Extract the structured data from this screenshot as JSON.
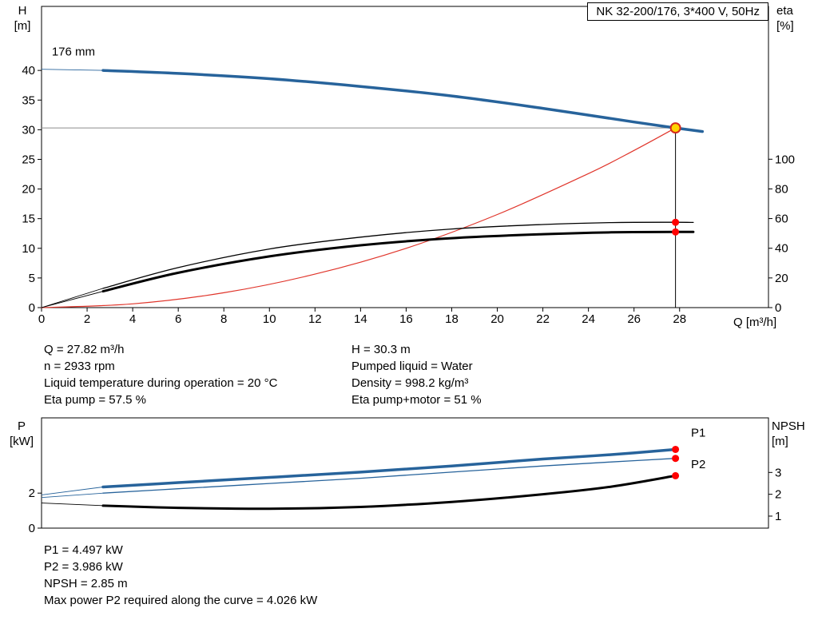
{
  "colors": {
    "curve_blue": "#27639b",
    "curve_red": "#e0352b",
    "marker_red": "#ff0000",
    "duty_yellow": "#ffd400",
    "guide_gray": "#8c8c8c",
    "axis_black": "#000000"
  },
  "results": {
    "left": [
      "Q = 27.82 m³/h",
      "n = 2933 rpm",
      "Liquid temperature during operation = 20 °C",
      "Eta pump = 57.5 %"
    ],
    "right": [
      "H = 30.3 m",
      "Pumped liquid = Water",
      "Density = 998.2 kg/m³",
      "Eta pump+motor = 51 %"
    ]
  },
  "bottom_results": [
    "P1 = 4.497 kW",
    "P2 = 3.986 kW",
    "NPSH = 2.85 m",
    "Max power P2 required along the curve = 4.026 kW"
  ],
  "chart_data": [
    {
      "id": "qh_eta",
      "type": "line",
      "title": "NK 32-200/176, 3*400 V, 50Hz",
      "x_axis": {
        "label": "Q [m³/h]",
        "min": 0,
        "max": 31.9,
        "ticks": [
          0,
          2,
          4,
          6,
          8,
          10,
          12,
          14,
          16,
          18,
          20,
          22,
          24,
          26,
          28
        ]
      },
      "y_left": {
        "label": "H\n[m]",
        "min": 0,
        "max": 50.8,
        "ticks": [
          0,
          5,
          10,
          15,
          20,
          25,
          30,
          35,
          40
        ]
      },
      "y_right": {
        "label": "eta\n[%]",
        "min": 0,
        "max": 203,
        "ticks": [
          0,
          20,
          40,
          60,
          80,
          100
        ]
      },
      "legend": "none",
      "grid": false,
      "series": [
        {
          "name": "head-curve-176mm",
          "axis": "left",
          "color": "#27639b",
          "width": 3.5,
          "thin_until": 2.7,
          "points": [
            [
              0,
              40.2
            ],
            [
              2.7,
              40.0
            ],
            [
              6,
              39.5
            ],
            [
              10,
              38.6
            ],
            [
              14,
              37.3
            ],
            [
              18,
              35.7
            ],
            [
              22,
              33.6
            ],
            [
              26,
              31.3
            ],
            [
              27.82,
              30.3
            ],
            [
              29,
              29.7
            ]
          ]
        },
        {
          "name": "system-curve",
          "axis": "left",
          "color": "#e0352b",
          "width": 1.2,
          "points": [
            [
              0,
              0
            ],
            [
              4,
              0.63
            ],
            [
              8,
              2.51
            ],
            [
              12,
              5.64
            ],
            [
              16,
              10.0
            ],
            [
              20,
              15.7
            ],
            [
              24,
              22.6
            ],
            [
              26,
              26.5
            ],
            [
              27.82,
              30.3
            ]
          ]
        },
        {
          "name": "eta-pump-curve",
          "axis": "right",
          "color": "#000000",
          "width": 1.3,
          "thin_until": 2.7,
          "points": [
            [
              0,
              0
            ],
            [
              2.7,
              13
            ],
            [
              6,
              27
            ],
            [
              10,
              39.5
            ],
            [
              14,
              47.5
            ],
            [
              18,
              53
            ],
            [
              22,
              56
            ],
            [
              25,
              57.3
            ],
            [
              27.82,
              57.5
            ],
            [
              28.6,
              57.4
            ]
          ]
        },
        {
          "name": "eta-pump-motor-curve",
          "axis": "right",
          "color": "#000000",
          "width": 3,
          "thin_until": 2.7,
          "points": [
            [
              0,
              0
            ],
            [
              2.7,
              11
            ],
            [
              6,
              23.5
            ],
            [
              10,
              34.5
            ],
            [
              14,
              42
            ],
            [
              18,
              46.8
            ],
            [
              22,
              49.5
            ],
            [
              25,
              50.7
            ],
            [
              27.82,
              51
            ],
            [
              28.6,
              51
            ]
          ]
        }
      ],
      "duty_point": {
        "q": 27.82,
        "h": 30.3
      },
      "guides": [
        {
          "name": "head-guide-line",
          "type": "h",
          "axis": "left",
          "v": 30.3,
          "q0": 0,
          "q1": 27.82,
          "color": "#8c8c8c"
        },
        {
          "name": "duty-vertical-line",
          "type": "v",
          "axis": "left",
          "q": 27.82,
          "v0": 0,
          "v1": 30.3,
          "color": "#000000"
        }
      ],
      "markers": [
        {
          "name": "eta-pump-endpoint",
          "axis": "right",
          "q": 27.82,
          "v": 57.5,
          "r": 4.5,
          "fill": "#ff0000"
        },
        {
          "name": "eta-pump-motor-endpoint",
          "axis": "right",
          "q": 27.82,
          "v": 51,
          "r": 4.5,
          "fill": "#ff0000"
        },
        {
          "name": "duty-point",
          "axis": "left",
          "q": 27.82,
          "v": 30.3,
          "r": 6,
          "fill": "#ffd400",
          "stroke": "#d42b1e"
        }
      ],
      "labels": [
        {
          "name": "impeller-diameter-label",
          "text": "176 mm",
          "q": 0.45,
          "v": 43.2,
          "axis": "left",
          "color": "#000000"
        }
      ]
    },
    {
      "id": "power_npsh",
      "type": "line",
      "title": "",
      "x_axis": {
        "label": "",
        "min": 0,
        "max": 31.9,
        "ticks": []
      },
      "y_left": {
        "label": "P\n[kW]",
        "min": 0,
        "max": 6.3,
        "ticks": [
          0,
          2
        ]
      },
      "y_right": {
        "label": "NPSH\n[m]",
        "min": 0.45,
        "max": 5.5,
        "ticks": [
          1,
          2,
          3
        ]
      },
      "legend": "inline",
      "grid": false,
      "series": [
        {
          "name": "p1-curve",
          "axis": "left",
          "color": "#27639b",
          "width": 3.5,
          "thin_until": 2.7,
          "points": [
            [
              0,
              1.9
            ],
            [
              2.7,
              2.35
            ],
            [
              6,
              2.6
            ],
            [
              10,
              2.9
            ],
            [
              14,
              3.2
            ],
            [
              18,
              3.55
            ],
            [
              22,
              3.95
            ],
            [
              25,
              4.2
            ],
            [
              27.82,
              4.497
            ]
          ]
        },
        {
          "name": "p2-curve",
          "axis": "left",
          "color": "#27639b",
          "width": 1.3,
          "thin_until": 2.7,
          "points": [
            [
              0,
              1.75
            ],
            [
              2.7,
              2.0
            ],
            [
              6,
              2.25
            ],
            [
              10,
              2.55
            ],
            [
              14,
              2.85
            ],
            [
              18,
              3.2
            ],
            [
              22,
              3.55
            ],
            [
              25,
              3.78
            ],
            [
              27.82,
              3.986
            ]
          ]
        },
        {
          "name": "npsh-curve",
          "axis": "right",
          "color": "#000000",
          "width": 3,
          "thin_until": 2.7,
          "points": [
            [
              0,
              1.6
            ],
            [
              2.7,
              1.48
            ],
            [
              6,
              1.38
            ],
            [
              10,
              1.34
            ],
            [
              14,
              1.42
            ],
            [
              18,
              1.65
            ],
            [
              22,
              2.0
            ],
            [
              25,
              2.35
            ],
            [
              27.82,
              2.85
            ]
          ]
        }
      ],
      "guides": [],
      "markers": [
        {
          "name": "p1-endpoint",
          "axis": "left",
          "q": 27.82,
          "v": 4.497,
          "r": 4.5,
          "fill": "#ff0000"
        },
        {
          "name": "p2-endpoint",
          "axis": "left",
          "q": 27.82,
          "v": 3.986,
          "r": 4.5,
          "fill": "#ff0000"
        },
        {
          "name": "npsh-endpoint",
          "axis": "right",
          "q": 27.82,
          "v": 2.85,
          "r": 4.5,
          "fill": "#ff0000"
        }
      ],
      "labels": [
        {
          "name": "p1-curve-label",
          "text": "P1",
          "q": 28.5,
          "v": 5.45,
          "axis": "left",
          "color": "#27639b"
        },
        {
          "name": "p2-curve-label",
          "text": "P2",
          "q": 28.5,
          "v": 3.65,
          "axis": "left",
          "color": "#27639b"
        }
      ]
    }
  ]
}
